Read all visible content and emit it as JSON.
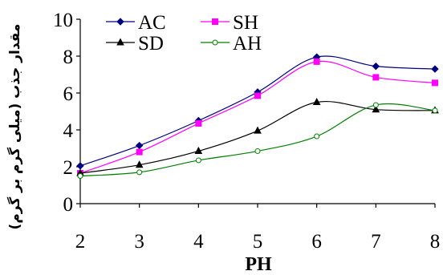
{
  "chart_data": {
    "type": "line",
    "x": [
      2,
      3,
      4,
      5,
      6,
      7,
      8
    ],
    "xlabel": "PH",
    "ylabel": "مقدار جذب (میلی گرم بر گرم)",
    "xlim": [
      2,
      8
    ],
    "ylim": [
      0,
      10
    ],
    "x_ticks": [
      "2",
      "3",
      "4",
      "5",
      "6",
      "7",
      "8"
    ],
    "y_ticks": [
      "0",
      "2",
      "4",
      "6",
      "8",
      "10"
    ],
    "grid": false,
    "legend_placement": "top-left",
    "series": [
      {
        "name": "AC",
        "color": "#000080",
        "marker": "diamond",
        "values": [
          2.05,
          3.15,
          4.5,
          6.05,
          7.95,
          7.45,
          7.3
        ]
      },
      {
        "name": "SH",
        "color": "#ff00ff",
        "marker": "square",
        "values": [
          1.65,
          2.8,
          4.35,
          5.85,
          7.7,
          6.85,
          6.55
        ]
      },
      {
        "name": "SD",
        "color": "#000000",
        "marker": "triangle",
        "values": [
          1.65,
          2.1,
          2.85,
          3.95,
          5.5,
          5.1,
          5.05
        ]
      },
      {
        "name": "AH",
        "color": "#008000",
        "marker": "circle",
        "values": [
          1.5,
          1.7,
          2.35,
          2.85,
          3.65,
          5.35,
          5.05
        ]
      }
    ]
  }
}
